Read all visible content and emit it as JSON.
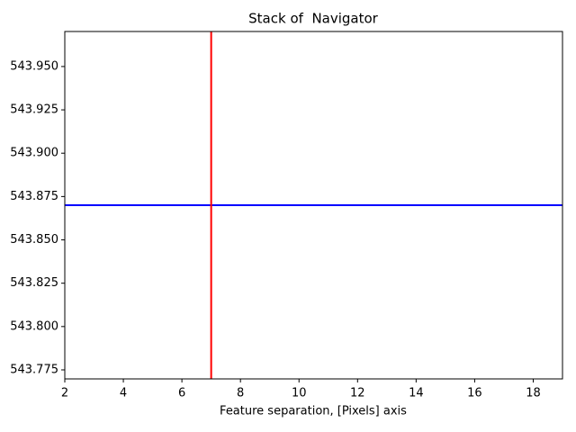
{
  "chart_data": {
    "type": "line",
    "title": "Stack of  Navigator",
    "xlabel": "Feature separation, [Pixels] axis",
    "xlim": [
      2,
      19
    ],
    "xticks": [
      2,
      4,
      6,
      8,
      10,
      12,
      14,
      16,
      18
    ],
    "ylim": [
      543.7698,
      543.9702
    ],
    "yticks": [
      543.775,
      {
        "value": 543.8,
        "label": "543.800"
      },
      543.825,
      {
        "value": 543.85,
        "label": "543.850"
      },
      543.875,
      {
        "value": 543.9,
        "label": "543.900"
      },
      543.925,
      {
        "value": 543.95,
        "label": "543.950"
      }
    ],
    "hlines": [
      {
        "y": 543.87,
        "color": "#0000ff"
      }
    ],
    "vlines": [
      {
        "x": 7,
        "color": "#ff0000"
      }
    ]
  }
}
